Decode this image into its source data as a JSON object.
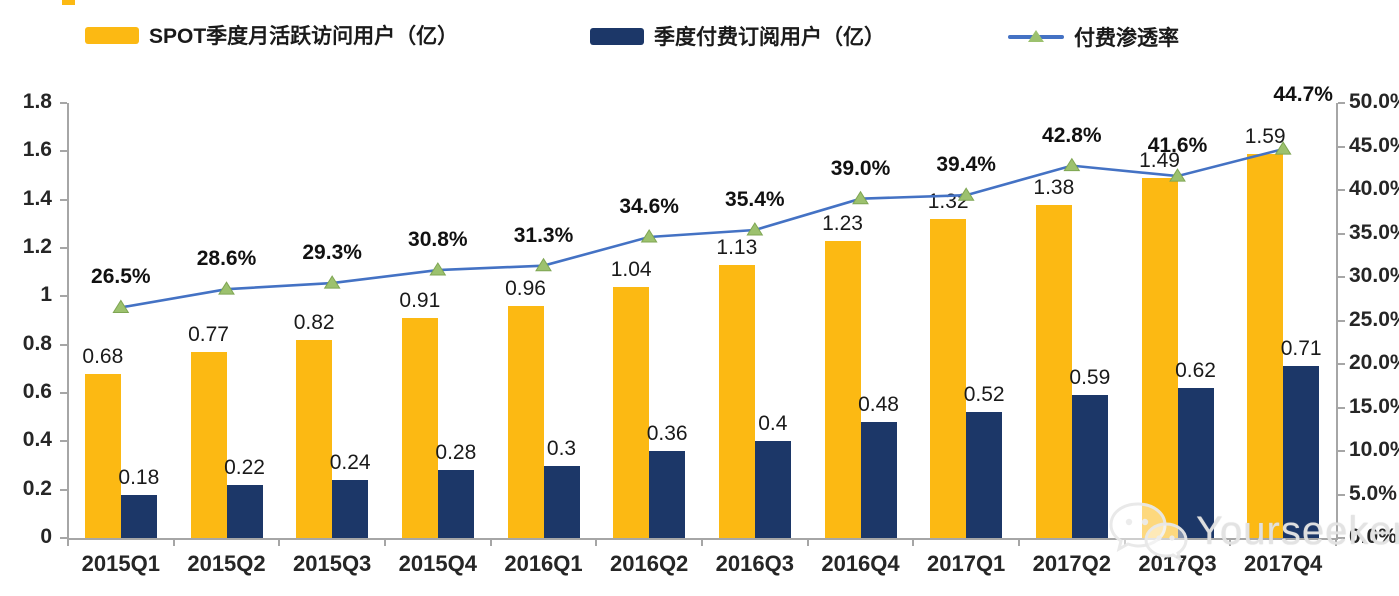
{
  "legend": {
    "items": [
      {
        "label": "SPOT季度月活跃访问用户（亿）",
        "swatch_color": "#FCB913",
        "type": "bar"
      },
      {
        "label": "季度付费订阅用户（亿）",
        "swatch_color": "#1C3768",
        "type": "bar"
      },
      {
        "label": "付费渗透率",
        "swatch_color": "#4472C4",
        "marker_color": "#9CC16E",
        "type": "line"
      }
    ]
  },
  "chart_data": {
    "type": "bar",
    "subtype": "combo-bar-line-dual-axis",
    "title": "",
    "categories": [
      "2015Q1",
      "2015Q2",
      "2015Q3",
      "2015Q4",
      "2016Q1",
      "2016Q2",
      "2016Q3",
      "2016Q4",
      "2017Q1",
      "2017Q2",
      "2017Q3",
      "2017Q4"
    ],
    "series": [
      {
        "name": "SPOT季度月活跃访问用户（亿）",
        "type": "bar",
        "axis": "left",
        "color": "#FCB913",
        "values": [
          0.68,
          0.77,
          0.82,
          0.91,
          0.96,
          1.04,
          1.13,
          1.23,
          1.32,
          1.38,
          1.49,
          1.59
        ],
        "labels": [
          "0.68",
          "0.77",
          "0.82",
          "0.91",
          "0.96",
          "1.04",
          "1.13",
          "1.23",
          "1.32",
          "1.38",
          "1.49",
          "1.59"
        ]
      },
      {
        "name": "季度付费订阅用户（亿）",
        "type": "bar",
        "axis": "left",
        "color": "#1C3768",
        "values": [
          0.18,
          0.22,
          0.24,
          0.28,
          0.3,
          0.36,
          0.4,
          0.48,
          0.52,
          0.59,
          0.62,
          0.71
        ],
        "labels": [
          "0.18",
          "0.22",
          "0.24",
          "0.28",
          "0.3",
          "0.36",
          "0.4",
          "0.48",
          "0.52",
          "0.59",
          "0.62",
          "0.71"
        ]
      },
      {
        "name": "付费渗透率",
        "type": "line",
        "axis": "right",
        "color": "#4472C4",
        "marker": "triangle",
        "marker_color": "#9CC16E",
        "values": [
          26.5,
          28.6,
          29.3,
          30.8,
          31.3,
          34.6,
          35.4,
          39.0,
          39.4,
          42.8,
          41.6,
          44.7
        ],
        "labels": [
          "26.5%",
          "28.6%",
          "29.3%",
          "30.8%",
          "31.3%",
          "34.6%",
          "35.4%",
          "39.0%",
          "39.4%",
          "42.8%",
          "41.6%",
          "44.7%"
        ]
      }
    ],
    "left_axis": {
      "min": 0,
      "max": 1.8,
      "ticks": [
        "0",
        "0.2",
        "0.4",
        "0.6",
        "0.8",
        "1",
        "1.2",
        "1.4",
        "1.6",
        "1.8"
      ]
    },
    "right_axis": {
      "min": 0,
      "max": 50.0,
      "ticks": [
        "0.0%",
        "5.0%",
        "10.0%",
        "15.0%",
        "20.0%",
        "25.0%",
        "30.0%",
        "35.0%",
        "40.0%",
        "45.0%",
        "50.0%"
      ]
    },
    "grid": "off",
    "legend_position": "top"
  },
  "watermark": {
    "text": "Yourseeker",
    "icon": "wechat-icon"
  },
  "colors": {
    "bar_mau": "#FCB913",
    "bar_subs": "#1C3768",
    "line_penetration": "#4472C4",
    "line_marker": "#9CC16E",
    "axis": "#A6A6A6",
    "text": "#262626"
  }
}
